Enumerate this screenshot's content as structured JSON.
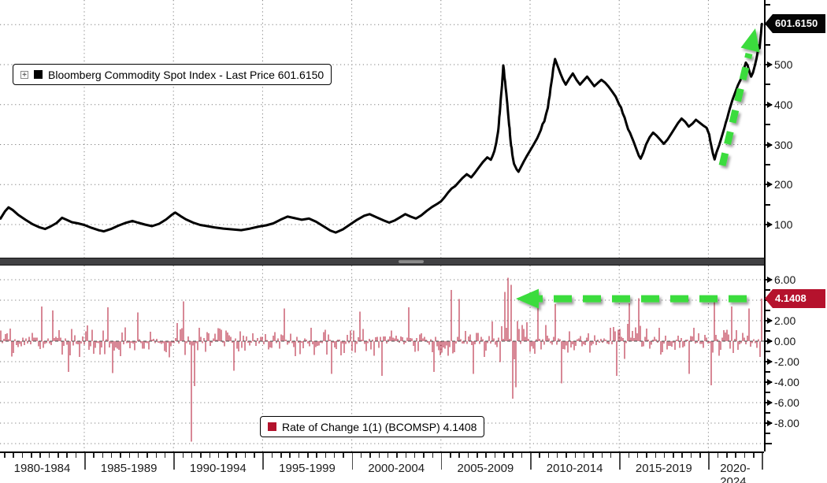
{
  "colors": {
    "background": "#ffffff",
    "grid": "#7d7d7d",
    "zero_line": "#4a4a4a",
    "line_series": "#000000",
    "bar_red": "#b2122c",
    "tag_black_bg": "#050505",
    "tag_red_bg": "#b5122d",
    "tag_text": "#ffffff",
    "arrow_green": "#3bdc3e",
    "separator": "#414143",
    "axis": "#000000"
  },
  "top_panel": {
    "legend": {
      "label": "Bloomberg Commodity Spot Index - Last Price 601.6150",
      "marker_color": "#000000",
      "expand_glyph": "+"
    },
    "price_tag": "601.6150",
    "y_axis": {
      "labels": [
        "500",
        "400",
        "300",
        "200",
        "100"
      ],
      "values": [
        500,
        400,
        300,
        200,
        100
      ],
      "minor_step": 50,
      "range": [
        50,
        650
      ]
    }
  },
  "bottom_panel": {
    "legend": {
      "label": "Rate of Change 1(1) (BCOMSP) 4.1408",
      "marker_color": "#b2122c"
    },
    "value_tag": "4.1408",
    "y_axis": {
      "labels": [
        "6.00",
        "2.00",
        "0.00",
        "-2.00",
        "-4.00",
        "-6.00",
        "-8.00"
      ],
      "values": [
        6,
        2,
        0,
        -2,
        -4,
        -6,
        -8
      ],
      "minor_step": 1,
      "range": [
        -10.8,
        7.4
      ]
    }
  },
  "x_axis": {
    "labels": [
      "1980-1984",
      "1985-1989",
      "1990-1994",
      "1995-1999",
      "2000-2004",
      "2005-2009",
      "2010-2014",
      "2015-2019",
      "2020-2024"
    ],
    "gridline_years": [
      1985,
      1990,
      1995,
      2000,
      2005,
      2010,
      2015,
      2020
    ]
  },
  "chart_data": [
    {
      "type": "line",
      "name": "Bloomberg Commodity Spot Index - Last Price",
      "last_price": 601.615,
      "x_unit": "year",
      "ylim": [
        50,
        650
      ],
      "points": [
        [
          1980.3,
          115
        ],
        [
          1980.55,
          133
        ],
        [
          1980.75,
          143
        ],
        [
          1981.0,
          136
        ],
        [
          1981.3,
          124
        ],
        [
          1981.7,
          112
        ],
        [
          1982.1,
          101
        ],
        [
          1982.5,
          93
        ],
        [
          1982.8,
          89
        ],
        [
          1983.1,
          95
        ],
        [
          1983.45,
          104
        ],
        [
          1983.75,
          117
        ],
        [
          1984.0,
          112
        ],
        [
          1984.3,
          106
        ],
        [
          1984.65,
          103
        ],
        [
          1985.0,
          99
        ],
        [
          1985.4,
          92
        ],
        [
          1985.8,
          86
        ],
        [
          1986.1,
          83
        ],
        [
          1986.5,
          89
        ],
        [
          1986.9,
          97
        ],
        [
          1987.3,
          104
        ],
        [
          1987.7,
          109
        ],
        [
          1988.0,
          105
        ],
        [
          1988.4,
          100
        ],
        [
          1988.8,
          96
        ],
        [
          1989.2,
          102
        ],
        [
          1989.6,
          113
        ],
        [
          1989.9,
          124
        ],
        [
          1990.1,
          130
        ],
        [
          1990.4,
          121
        ],
        [
          1990.7,
          113
        ],
        [
          1991.1,
          105
        ],
        [
          1991.5,
          99
        ],
        [
          1991.9,
          96
        ],
        [
          1992.3,
          93
        ],
        [
          1992.8,
          90
        ],
        [
          1993.3,
          88
        ],
        [
          1993.8,
          86
        ],
        [
          1994.3,
          90
        ],
        [
          1994.8,
          95
        ],
        [
          1995.2,
          98
        ],
        [
          1995.6,
          103
        ],
        [
          1996.0,
          112
        ],
        [
          1996.4,
          120
        ],
        [
          1996.8,
          116
        ],
        [
          1997.2,
          112
        ],
        [
          1997.6,
          115
        ],
        [
          1998.0,
          107
        ],
        [
          1998.4,
          96
        ],
        [
          1998.8,
          85
        ],
        [
          1999.1,
          80
        ],
        [
          1999.5,
          88
        ],
        [
          1999.9,
          100
        ],
        [
          2000.3,
          112
        ],
        [
          2000.7,
          122
        ],
        [
          2001.0,
          126
        ],
        [
          2001.4,
          118
        ],
        [
          2001.8,
          110
        ],
        [
          2002.1,
          105
        ],
        [
          2002.4,
          110
        ],
        [
          2002.7,
          118
        ],
        [
          2003.0,
          126
        ],
        [
          2003.3,
          120
        ],
        [
          2003.6,
          115
        ],
        [
          2003.9,
          123
        ],
        [
          2004.2,
          134
        ],
        [
          2004.5,
          144
        ],
        [
          2004.8,
          152
        ],
        [
          2005.0,
          158
        ],
        [
          2005.2,
          168
        ],
        [
          2005.4,
          180
        ],
        [
          2005.6,
          190
        ],
        [
          2005.8,
          196
        ],
        [
          2006.0,
          206
        ],
        [
          2006.2,
          216
        ],
        [
          2006.45,
          226
        ],
        [
          2006.7,
          218
        ],
        [
          2006.9,
          229
        ],
        [
          2007.1,
          241
        ],
        [
          2007.35,
          256
        ],
        [
          2007.6,
          268
        ],
        [
          2007.8,
          262
        ],
        [
          2008.0,
          284
        ],
        [
          2008.1,
          304
        ],
        [
          2008.2,
          330
        ],
        [
          2008.3,
          378
        ],
        [
          2008.38,
          425
        ],
        [
          2008.45,
          465
        ],
        [
          2008.5,
          498
        ],
        [
          2008.6,
          458
        ],
        [
          2008.7,
          412
        ],
        [
          2008.8,
          362
        ],
        [
          2008.9,
          312
        ],
        [
          2009.0,
          276
        ],
        [
          2009.1,
          252
        ],
        [
          2009.25,
          238
        ],
        [
          2009.35,
          232
        ],
        [
          2009.5,
          245
        ],
        [
          2009.65,
          258
        ],
        [
          2009.8,
          270
        ],
        [
          2010.0,
          285
        ],
        [
          2010.2,
          300
        ],
        [
          2010.4,
          316
        ],
        [
          2010.6,
          336
        ],
        [
          2010.8,
          358
        ],
        [
          2011.0,
          392
        ],
        [
          2011.1,
          422
        ],
        [
          2011.2,
          456
        ],
        [
          2011.3,
          490
        ],
        [
          2011.4,
          514
        ],
        [
          2011.55,
          496
        ],
        [
          2011.7,
          478
        ],
        [
          2011.85,
          462
        ],
        [
          2012.0,
          450
        ],
        [
          2012.2,
          465
        ],
        [
          2012.4,
          478
        ],
        [
          2012.6,
          462
        ],
        [
          2012.8,
          450
        ],
        [
          2013.0,
          460
        ],
        [
          2013.2,
          470
        ],
        [
          2013.4,
          458
        ],
        [
          2013.6,
          446
        ],
        [
          2013.8,
          454
        ],
        [
          2014.0,
          462
        ],
        [
          2014.2,
          455
        ],
        [
          2014.4,
          445
        ],
        [
          2014.6,
          433
        ],
        [
          2014.8,
          420
        ],
        [
          2015.0,
          400
        ],
        [
          2015.2,
          378
        ],
        [
          2015.4,
          352
        ],
        [
          2015.6,
          330
        ],
        [
          2015.8,
          308
        ],
        [
          2015.95,
          290
        ],
        [
          2016.1,
          272
        ],
        [
          2016.2,
          265
        ],
        [
          2016.35,
          280
        ],
        [
          2016.5,
          300
        ],
        [
          2016.7,
          318
        ],
        [
          2016.9,
          330
        ],
        [
          2017.1,
          322
        ],
        [
          2017.3,
          312
        ],
        [
          2017.5,
          302
        ],
        [
          2017.7,
          312
        ],
        [
          2017.9,
          326
        ],
        [
          2018.1,
          340
        ],
        [
          2018.3,
          354
        ],
        [
          2018.5,
          365
        ],
        [
          2018.7,
          357
        ],
        [
          2018.9,
          345
        ],
        [
          2019.1,
          352
        ],
        [
          2019.3,
          362
        ],
        [
          2019.5,
          355
        ],
        [
          2019.7,
          348
        ],
        [
          2019.9,
          342
        ],
        [
          2020.05,
          325
        ],
        [
          2020.15,
          300
        ],
        [
          2020.25,
          278
        ],
        [
          2020.35,
          263
        ],
        [
          2020.45,
          280
        ],
        [
          2020.6,
          298
        ],
        [
          2020.75,
          320
        ],
        [
          2020.9,
          342
        ],
        [
          2021.05,
          365
        ],
        [
          2021.2,
          390
        ],
        [
          2021.35,
          412
        ],
        [
          2021.5,
          430
        ],
        [
          2021.65,
          448
        ],
        [
          2021.8,
          462
        ],
        [
          2021.9,
          475
        ],
        [
          2022.0,
          490
        ],
        [
          2022.1,
          505
        ],
        [
          2022.2,
          498
        ],
        [
          2022.3,
          482
        ],
        [
          2022.4,
          470
        ],
        [
          2022.5,
          480
        ],
        [
          2022.6,
          497
        ],
        [
          2022.7,
          515
        ],
        [
          2022.78,
          535
        ],
        [
          2022.83,
          548
        ],
        [
          2022.87,
          541
        ],
        [
          2022.91,
          560
        ],
        [
          2022.95,
          578
        ],
        [
          2023.0,
          601.615
        ]
      ]
    },
    {
      "type": "bar",
      "name": "Rate of Change 1(1) (BCOMSP)",
      "last_value": 4.1408,
      "x_unit": "year",
      "ylim": [
        -10.8,
        7.4
      ],
      "baseline": 0,
      "amplitude_envelope": [
        [
          1980,
          1.5
        ],
        [
          1981.5,
          1.7
        ],
        [
          1983,
          1.9
        ],
        [
          1984.5,
          1.5
        ],
        [
          1986,
          1.7
        ],
        [
          1987.5,
          1.4
        ],
        [
          1989,
          1.4
        ],
        [
          1990.5,
          1.9
        ],
        [
          1991.5,
          1.6
        ],
        [
          1993,
          1.3
        ],
        [
          1995,
          1.25
        ],
        [
          1996.5,
          1.5
        ],
        [
          1998,
          1.5
        ],
        [
          1999.5,
          1.6
        ],
        [
          2001,
          1.5
        ],
        [
          2002.5,
          1.5
        ],
        [
          2004,
          1.6
        ],
        [
          2005.5,
          1.9
        ],
        [
          2007,
          1.7
        ],
        [
          2008.5,
          2.3
        ],
        [
          2009.3,
          2.4
        ],
        [
          2010.5,
          1.7
        ],
        [
          2011.5,
          1.8
        ],
        [
          2012.5,
          1.4
        ],
        [
          2013.5,
          1.3
        ],
        [
          2014.5,
          1.5
        ],
        [
          2015.5,
          1.8
        ],
        [
          2016.5,
          1.7
        ],
        [
          2017.5,
          1.3
        ],
        [
          2018.5,
          1.4
        ],
        [
          2019.5,
          1.4
        ],
        [
          2020.3,
          2.0
        ],
        [
          2021,
          1.7
        ],
        [
          2022,
          1.8
        ],
        [
          2023,
          1.9
        ]
      ],
      "notable_spikes": [
        [
          1982.6,
          3.4
        ],
        [
          1983.2,
          3.0
        ],
        [
          1984.1,
          -3.0
        ],
        [
          1986.3,
          3.3
        ],
        [
          1986.6,
          -3.1
        ],
        [
          1988.0,
          2.8
        ],
        [
          1990.6,
          3.9
        ],
        [
          1991.02,
          -9.8
        ],
        [
          1991.15,
          -4.4
        ],
        [
          1993.4,
          -2.9
        ],
        [
          1996.2,
          3.2
        ],
        [
          1998.9,
          -3.2
        ],
        [
          2000.5,
          2.9
        ],
        [
          2001.7,
          -3.4
        ],
        [
          2003.2,
          3.3
        ],
        [
          2004.6,
          -3.0
        ],
        [
          2005.55,
          5.0
        ],
        [
          2006.0,
          4.1
        ],
        [
          2006.8,
          -3.2
        ],
        [
          2008.55,
          4.8
        ],
        [
          2008.75,
          6.2
        ],
        [
          2008.9,
          5.5
        ],
        [
          2009.0,
          -5.6
        ],
        [
          2009.2,
          -4.5
        ],
        [
          2010.4,
          3.4
        ],
        [
          2011.45,
          3.6
        ],
        [
          2011.75,
          -4.1
        ],
        [
          2014.9,
          -3.4
        ],
        [
          2015.6,
          3.7
        ],
        [
          2016.1,
          4.2
        ],
        [
          2018.9,
          -3.2
        ],
        [
          2020.2,
          -4.3
        ],
        [
          2020.35,
          3.8
        ],
        [
          2021.3,
          3.4
        ],
        [
          2022.3,
          3.2
        ],
        [
          2022.95,
          4.1408
        ]
      ]
    }
  ],
  "annotations": [
    {
      "type": "arrow",
      "color": "#3bdc3e",
      "style": "dashed",
      "panel": "top",
      "direction": "up-right",
      "meaning": "surge to new high 601.6150"
    },
    {
      "type": "arrow",
      "color": "#3bdc3e",
      "style": "dashed",
      "panel": "bottom",
      "direction": "left",
      "meaning": "points to 2008-level rate of change 4.1408"
    }
  ]
}
